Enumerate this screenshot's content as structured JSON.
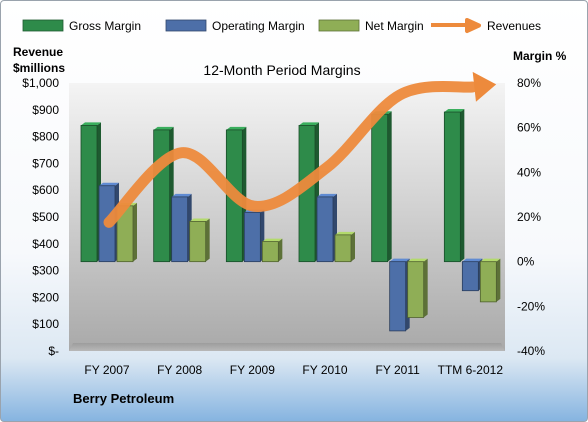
{
  "legend": {
    "items": [
      {
        "label": "Gross Margin",
        "color": "#2e8b4a",
        "shape": "rect"
      },
      {
        "label": "Operating Margin",
        "color": "#4d6fa8",
        "shape": "rect"
      },
      {
        "label": "Net Margin",
        "color": "#8fae56",
        "shape": "rect"
      },
      {
        "label": "Revenues",
        "color": "#ed8a3c",
        "shape": "arrow"
      }
    ]
  },
  "left_axis": {
    "title_line1": "Revenue",
    "title_line2": "$millions"
  },
  "right_axis": {
    "title": "Margin %"
  },
  "footer": {
    "company": "Berry Petroleum"
  },
  "chart_data": {
    "type": "bar",
    "title": "12-Month Period Margins",
    "categories": [
      "FY 2007",
      "FY 2008",
      "FY 2009",
      "FY 2010",
      "FY 2011",
      "TTM 6-2012"
    ],
    "series": [
      {
        "name": "Gross Margin",
        "axis": "right",
        "color": "#2e8b4a",
        "values": [
          61,
          59,
          59,
          61,
          66,
          67
        ]
      },
      {
        "name": "Operating Margin",
        "axis": "right",
        "color": "#4d6fa8",
        "values": [
          34,
          29,
          22,
          29,
          -31,
          -13
        ]
      },
      {
        "name": "Net Margin",
        "axis": "right",
        "color": "#8fae56",
        "values": [
          25,
          18,
          9,
          12,
          -25,
          -18
        ]
      },
      {
        "name": "Revenues",
        "axis": "left",
        "type": "line",
        "color": "#ed8a3c",
        "values": [
          480,
          740,
          540,
          685,
          955,
          985
        ]
      }
    ],
    "left_axis": {
      "ylim": [
        0,
        1000
      ],
      "ticks": [
        "$-",
        "$100",
        "$200",
        "$300",
        "$400",
        "$500",
        "$600",
        "$700",
        "$800",
        "$900",
        "$1,000"
      ]
    },
    "right_axis": {
      "ylim": [
        -40,
        80
      ],
      "ticks": [
        "-40%",
        "-20%",
        "0%",
        "20%",
        "40%",
        "60%",
        "80%"
      ]
    },
    "grid": false,
    "legend_position": "top"
  }
}
